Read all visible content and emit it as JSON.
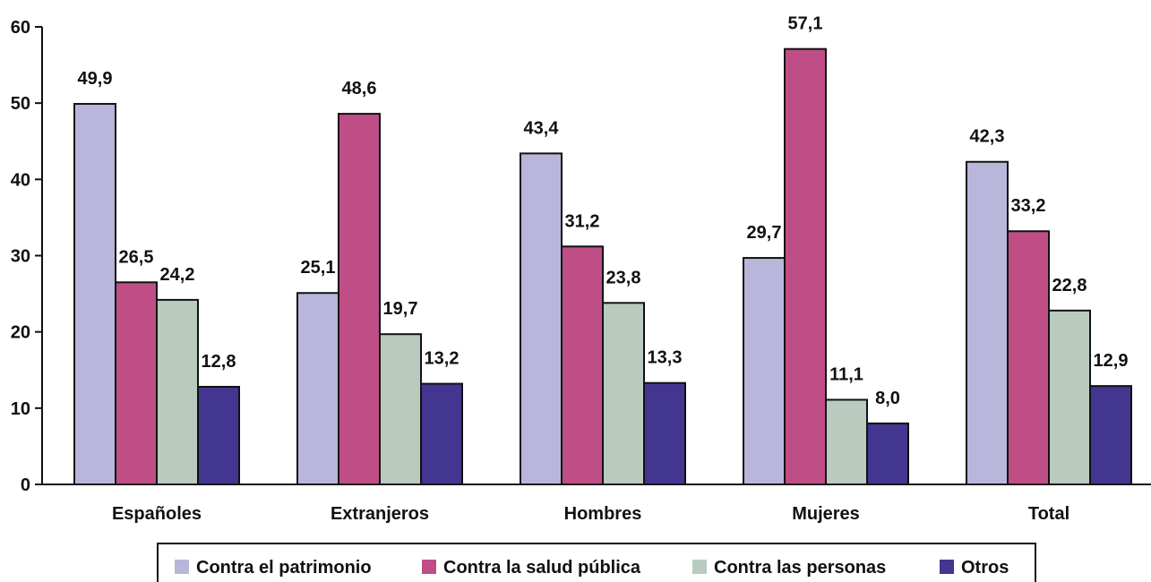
{
  "chart_data": {
    "type": "bar",
    "categories": [
      "Españoles",
      "Extranjeros",
      "Hombres",
      "Mujeres",
      "Total"
    ],
    "series": [
      {
        "name": "Contra el patrimonio",
        "color": "#b9b6dc",
        "values": [
          49.9,
          25.1,
          43.4,
          29.7,
          42.3
        ],
        "labels": [
          "49,9",
          "25,1",
          "43,4",
          "29,7",
          "42,3"
        ]
      },
      {
        "name": "Contra la salud pública",
        "color": "#bf4e86",
        "values": [
          26.5,
          48.6,
          31.2,
          57.1,
          33.2
        ],
        "labels": [
          "26,5",
          "48,6",
          "31,2",
          "57,1",
          "33,2"
        ]
      },
      {
        "name": "Contra las personas",
        "color": "#b9cbbf",
        "values": [
          24.2,
          19.7,
          23.8,
          11.1,
          22.8
        ],
        "labels": [
          "24,2",
          "19,7",
          "23,8",
          "11,1",
          "22,8"
        ]
      },
      {
        "name": "Otros",
        "color": "#433690",
        "values": [
          12.8,
          13.2,
          13.3,
          8.0,
          12.9
        ],
        "labels": [
          "12,8",
          "13,2",
          "13,3",
          "8,0",
          "12,9"
        ]
      }
    ],
    "yticks": [
      "0",
      "10",
      "20",
      "30",
      "40",
      "50",
      "60"
    ],
    "ylim": [
      0,
      60
    ],
    "title": "",
    "xlabel": "",
    "ylabel": "",
    "grid": false,
    "legend_position": "bottom"
  }
}
